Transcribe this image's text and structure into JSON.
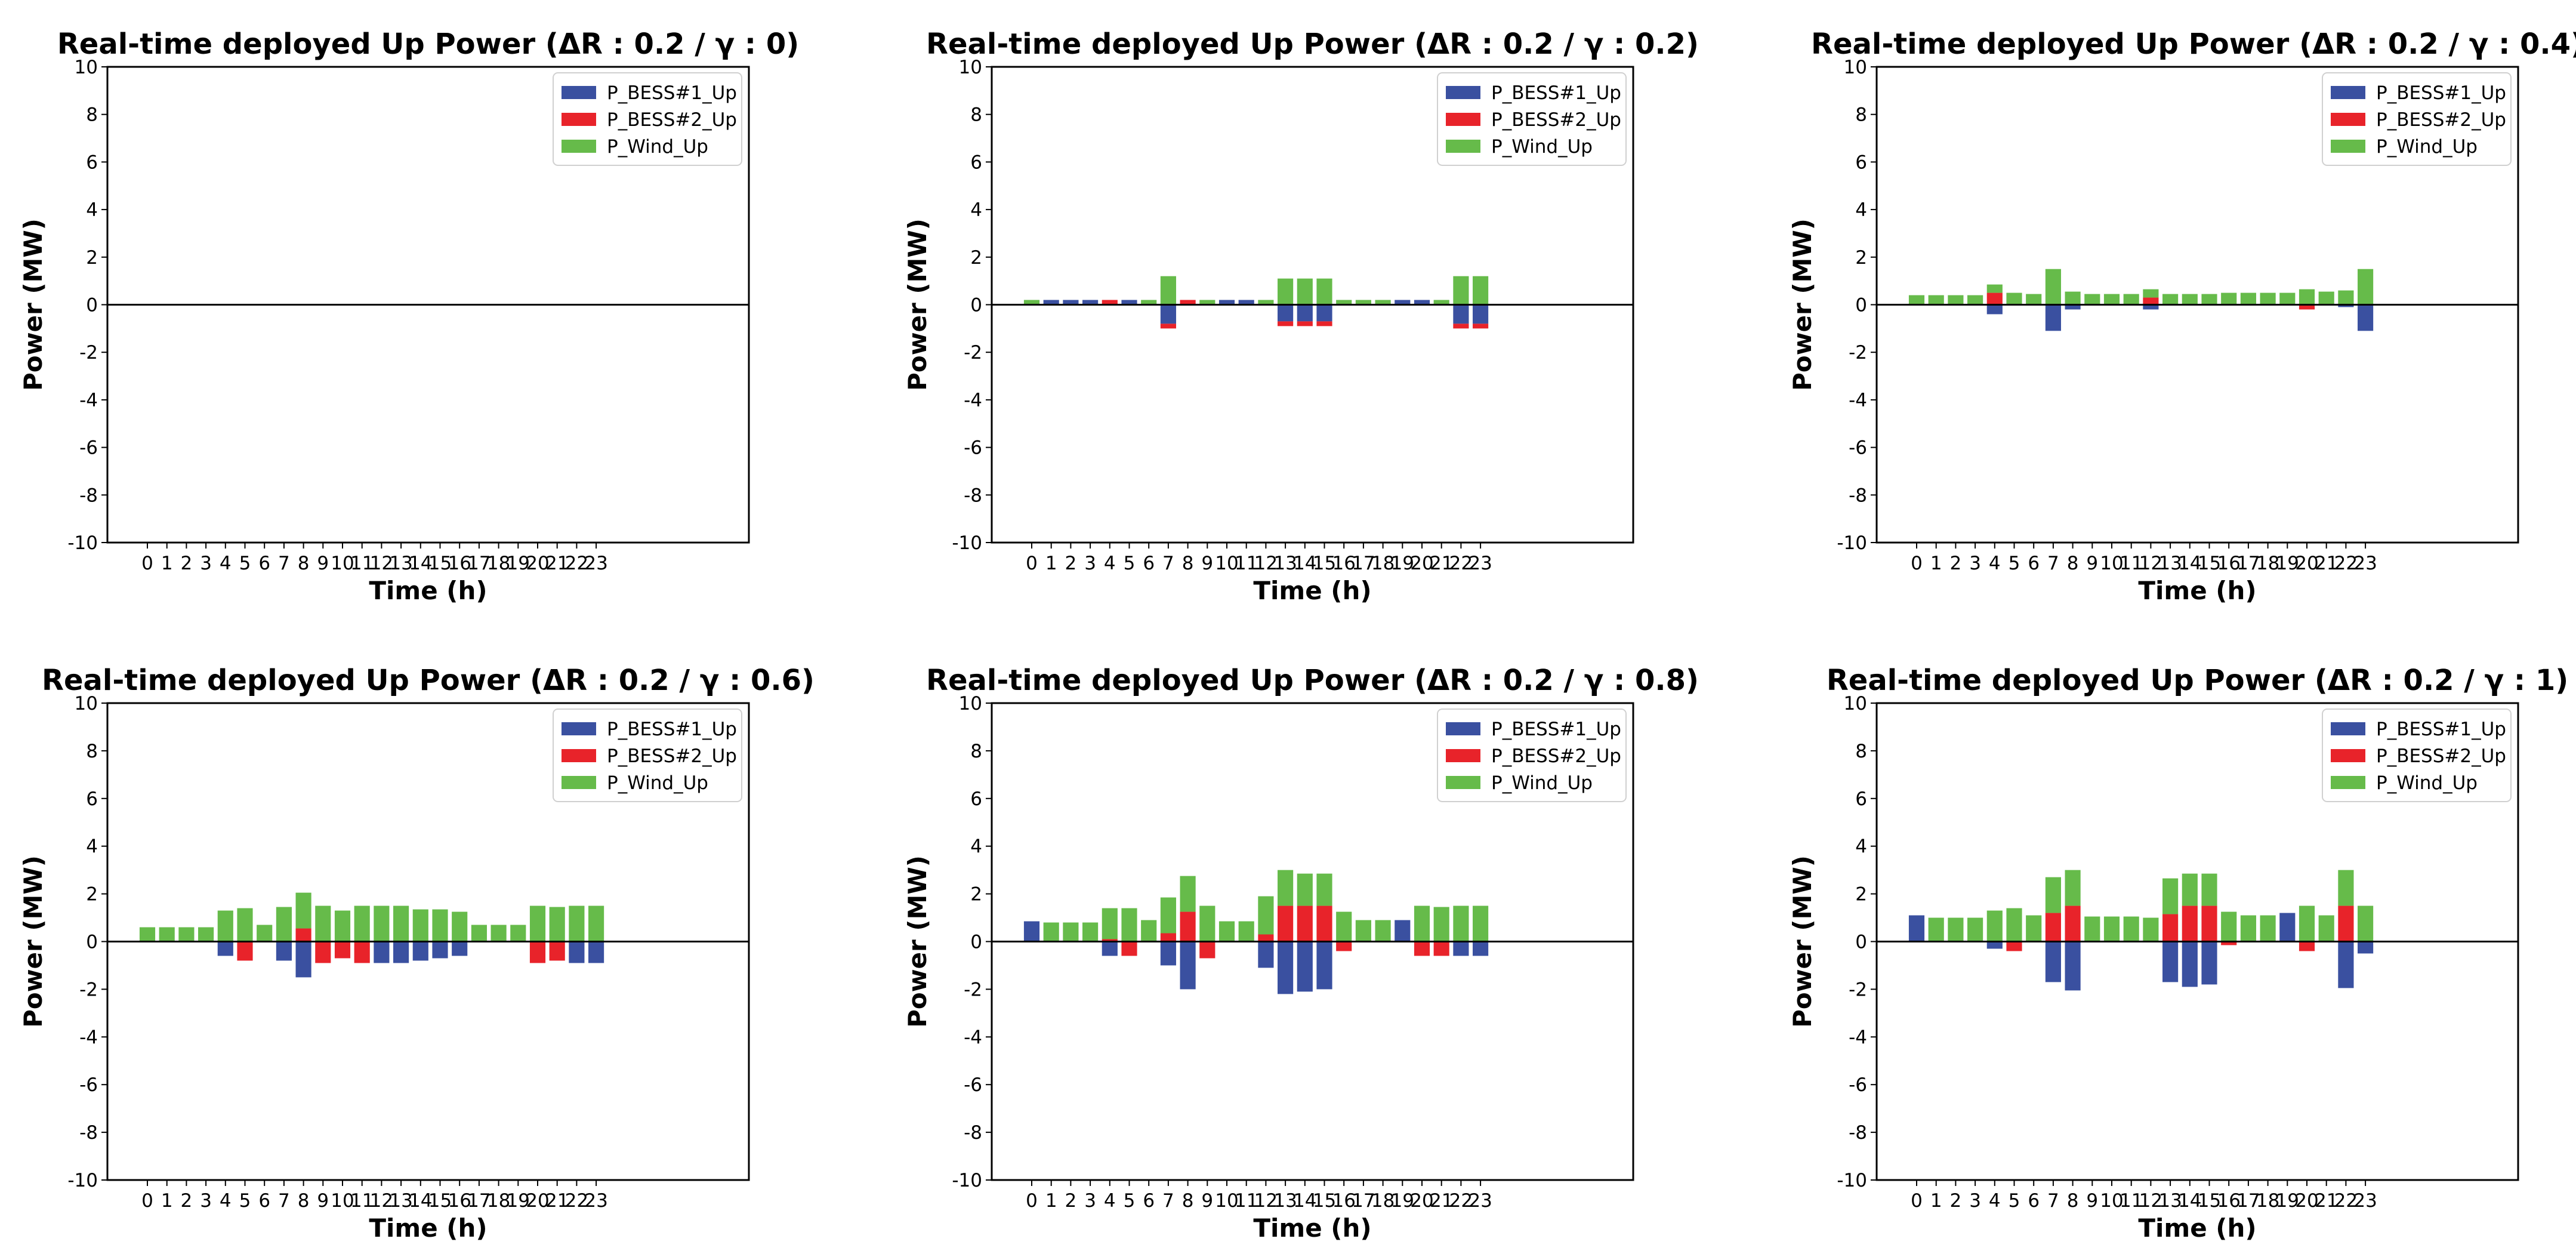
{
  "colors": {
    "bess1": "#3a50a0",
    "bess2": "#e8232a",
    "wind": "#66bb4a"
  },
  "legend_labels": [
    "P_BESS#1_Up",
    "P_BESS#2_Up",
    "P_Wind_Up"
  ],
  "chart_data": [
    {
      "type": "bar",
      "title": "Real-time deployed Up Power (ΔR : 0.2 / γ : 0)",
      "xlabel": "Time (h)",
      "ylabel": "Power (MW)",
      "categories": [
        "0",
        "1",
        "2",
        "3",
        "4",
        "5",
        "6",
        "7",
        "8",
        "9",
        "10",
        "11",
        "12",
        "13",
        "14",
        "15",
        "16",
        "17",
        "18",
        "19",
        "20",
        "21",
        "22",
        "23"
      ],
      "yticks": [
        -10,
        -8,
        -6,
        -4,
        -2,
        0,
        2,
        4,
        6,
        8,
        10
      ],
      "ylim": [
        -10,
        10
      ],
      "series": [
        {
          "name": "P_BESS#1_Up",
          "values": [
            0,
            0,
            0,
            0,
            0,
            0,
            0,
            0,
            0,
            0,
            0,
            0,
            0,
            0,
            0,
            0,
            0,
            0,
            0,
            0,
            0,
            0,
            0,
            0
          ]
        },
        {
          "name": "P_BESS#2_Up",
          "values": [
            0,
            0,
            0,
            0,
            0,
            0,
            0,
            0,
            0,
            0,
            0,
            0,
            0,
            0,
            0,
            0,
            0,
            0,
            0,
            0,
            0,
            0,
            0,
            0
          ]
        },
        {
          "name": "P_Wind_Up",
          "values": [
            0,
            0,
            0,
            0,
            0,
            0,
            0,
            0,
            0,
            0,
            0,
            0,
            0,
            0,
            0,
            0,
            0,
            0,
            0,
            0,
            0,
            0,
            0,
            0
          ]
        }
      ]
    },
    {
      "type": "bar",
      "title": "Real-time deployed Up Power (ΔR : 0.2 / γ : 0.2)",
      "xlabel": "Time (h)",
      "ylabel": "Power (MW)",
      "categories": [
        "0",
        "1",
        "2",
        "3",
        "4",
        "5",
        "6",
        "7",
        "8",
        "9",
        "10",
        "11",
        "12",
        "13",
        "14",
        "15",
        "16",
        "17",
        "18",
        "19",
        "20",
        "21",
        "22",
        "23"
      ],
      "yticks": [
        -10,
        -8,
        -6,
        -4,
        -2,
        0,
        2,
        4,
        6,
        8,
        10
      ],
      "ylim": [
        -10,
        10
      ],
      "series": [
        {
          "name": "P_BESS#1_Up",
          "values": [
            0,
            0.2,
            0.2,
            0.2,
            0,
            0.2,
            0,
            -0.8,
            0,
            0,
            0.2,
            0.2,
            0,
            -0.7,
            -0.7,
            -0.7,
            0,
            0,
            0,
            0.2,
            0.2,
            0,
            -0.8,
            -0.8
          ]
        },
        {
          "name": "P_BESS#2_Up",
          "values": [
            0,
            0,
            0,
            0,
            0.2,
            0,
            0,
            -0.2,
            0.2,
            0,
            0,
            0,
            0,
            -0.2,
            -0.2,
            -0.2,
            0,
            0,
            0,
            0,
            0,
            0,
            -0.2,
            -0.2
          ]
        },
        {
          "name": "P_Wind_Up",
          "values": [
            0.2,
            0,
            0,
            0,
            0,
            0,
            0.2,
            1.2,
            0,
            0.2,
            0,
            0,
            0.2,
            1.1,
            1.1,
            1.1,
            0.2,
            0.2,
            0.2,
            0,
            0,
            0.2,
            1.2,
            1.2
          ]
        }
      ]
    },
    {
      "type": "bar",
      "title": "Real-time deployed Up Power (ΔR : 0.2 / γ : 0.4)",
      "xlabel": "Time (h)",
      "ylabel": "Power (MW)",
      "categories": [
        "0",
        "1",
        "2",
        "3",
        "4",
        "5",
        "6",
        "7",
        "8",
        "9",
        "10",
        "11",
        "12",
        "13",
        "14",
        "15",
        "16",
        "17",
        "18",
        "19",
        "20",
        "21",
        "22",
        "23"
      ],
      "yticks": [
        -10,
        -8,
        -6,
        -4,
        -2,
        0,
        2,
        4,
        6,
        8,
        10
      ],
      "ylim": [
        -10,
        10
      ],
      "series": [
        {
          "name": "P_BESS#1_Up",
          "values": [
            0,
            0,
            0,
            0,
            -0.4,
            0,
            0,
            -1.1,
            -0.2,
            0,
            0,
            0,
            -0.2,
            0,
            0,
            0,
            0,
            0,
            0,
            0,
            0,
            0,
            -0.1,
            -1.1
          ]
        },
        {
          "name": "P_BESS#2_Up",
          "values": [
            0,
            0,
            0,
            0,
            0.5,
            0,
            0,
            0,
            0,
            0,
            0,
            0,
            0.3,
            0,
            0,
            0,
            0,
            0,
            0,
            0,
            -0.2,
            0,
            0,
            0
          ]
        },
        {
          "name": "P_Wind_Up",
          "values": [
            0.4,
            0.4,
            0.4,
            0.4,
            0.35,
            0.5,
            0.45,
            1.5,
            0.55,
            0.45,
            0.45,
            0.45,
            0.35,
            0.45,
            0.45,
            0.45,
            0.5,
            0.5,
            0.5,
            0.5,
            0.65,
            0.55,
            0.6,
            1.5
          ]
        }
      ]
    },
    {
      "type": "bar",
      "title": "Real-time deployed Up Power (ΔR : 0.2 / γ : 0.6)",
      "xlabel": "Time (h)",
      "ylabel": "Power (MW)",
      "categories": [
        "0",
        "1",
        "2",
        "3",
        "4",
        "5",
        "6",
        "7",
        "8",
        "9",
        "10",
        "11",
        "12",
        "13",
        "14",
        "15",
        "16",
        "17",
        "18",
        "19",
        "20",
        "21",
        "22",
        "23"
      ],
      "yticks": [
        -10,
        -8,
        -6,
        -4,
        -2,
        0,
        2,
        4,
        6,
        8,
        10
      ],
      "ylim": [
        -10,
        10
      ],
      "series": [
        {
          "name": "P_BESS#1_Up",
          "values": [
            0,
            0,
            0,
            0,
            -0.6,
            0,
            0,
            -0.8,
            -1.5,
            0,
            0,
            0,
            -0.9,
            -0.9,
            -0.8,
            -0.7,
            -0.6,
            0,
            0,
            0,
            0,
            0,
            -0.9,
            -0.9
          ]
        },
        {
          "name": "P_BESS#2_Up",
          "values": [
            0,
            0,
            0,
            0,
            0,
            -0.8,
            0,
            0,
            0.55,
            -0.9,
            -0.7,
            -0.9,
            0,
            0,
            0,
            0,
            0,
            0,
            0,
            0,
            -0.9,
            -0.8,
            0,
            0
          ]
        },
        {
          "name": "P_Wind_Up",
          "values": [
            0.6,
            0.6,
            0.6,
            0.6,
            1.3,
            1.4,
            0.7,
            1.45,
            1.5,
            1.5,
            1.3,
            1.5,
            1.5,
            1.5,
            1.35,
            1.35,
            1.25,
            0.7,
            0.7,
            0.7,
            1.5,
            1.45,
            1.5,
            1.5
          ]
        }
      ]
    },
    {
      "type": "bar",
      "title": "Real-time deployed Up Power (ΔR : 0.2 / γ : 0.8)",
      "xlabel": "Time (h)",
      "ylabel": "Power (MW)",
      "categories": [
        "0",
        "1",
        "2",
        "3",
        "4",
        "5",
        "6",
        "7",
        "8",
        "9",
        "10",
        "11",
        "12",
        "13",
        "14",
        "15",
        "16",
        "17",
        "18",
        "19",
        "20",
        "21",
        "22",
        "23"
      ],
      "yticks": [
        -10,
        -8,
        -6,
        -4,
        -2,
        0,
        2,
        4,
        6,
        8,
        10
      ],
      "ylim": [
        -10,
        10
      ],
      "series": [
        {
          "name": "P_BESS#1_Up",
          "values": [
            0.85,
            0,
            0,
            0,
            -0.6,
            0,
            0,
            -1.0,
            -2.0,
            0,
            0,
            0,
            -1.1,
            -2.2,
            -2.1,
            -2.0,
            0,
            0,
            0,
            0.9,
            0,
            0,
            -0.6,
            -0.6
          ]
        },
        {
          "name": "P_BESS#2_Up",
          "values": [
            0,
            0,
            0,
            0,
            0.1,
            -0.6,
            0,
            0.35,
            1.25,
            -0.7,
            0,
            0,
            0.3,
            1.5,
            1.5,
            1.5,
            -0.4,
            0,
            0,
            0,
            -0.6,
            -0.6,
            0,
            0
          ]
        },
        {
          "name": "P_Wind_Up",
          "values": [
            0,
            0.8,
            0.8,
            0.8,
            1.3,
            1.4,
            0.9,
            1.5,
            1.5,
            1.5,
            0.85,
            0.85,
            1.6,
            1.5,
            1.35,
            1.35,
            1.25,
            0.9,
            0.9,
            0,
            1.5,
            1.45,
            1.5,
            1.5
          ]
        }
      ]
    },
    {
      "type": "bar",
      "title": "Real-time deployed Up Power (ΔR : 0.2 / γ : 1)",
      "xlabel": "Time (h)",
      "ylabel": "Power (MW)",
      "categories": [
        "0",
        "1",
        "2",
        "3",
        "4",
        "5",
        "6",
        "7",
        "8",
        "9",
        "10",
        "11",
        "12",
        "13",
        "14",
        "15",
        "16",
        "17",
        "18",
        "19",
        "20",
        "21",
        "22",
        "23"
      ],
      "yticks": [
        -10,
        -8,
        -6,
        -4,
        -2,
        0,
        2,
        4,
        6,
        8,
        10
      ],
      "ylim": [
        -10,
        10
      ],
      "series": [
        {
          "name": "P_BESS#1_Up",
          "values": [
            1.1,
            0,
            0,
            0,
            -0.3,
            0,
            0,
            -1.7,
            -2.05,
            0,
            0,
            0,
            0,
            -1.7,
            -1.9,
            -1.8,
            0,
            0,
            0,
            1.2,
            0,
            0,
            -1.95,
            -0.5
          ]
        },
        {
          "name": "P_BESS#2_Up",
          "values": [
            0,
            0,
            0,
            0,
            0,
            -0.4,
            0,
            1.2,
            1.5,
            0,
            0,
            0,
            0,
            1.15,
            1.5,
            1.5,
            -0.15,
            0,
            0,
            0,
            -0.4,
            0,
            1.5,
            0
          ]
        },
        {
          "name": "P_Wind_Up",
          "values": [
            0,
            1.0,
            1.0,
            1.0,
            1.3,
            1.4,
            1.1,
            1.5,
            1.5,
            1.05,
            1.05,
            1.05,
            1.0,
            1.5,
            1.35,
            1.35,
            1.25,
            1.1,
            1.1,
            0,
            1.5,
            1.1,
            1.5,
            1.5
          ]
        }
      ]
    }
  ]
}
